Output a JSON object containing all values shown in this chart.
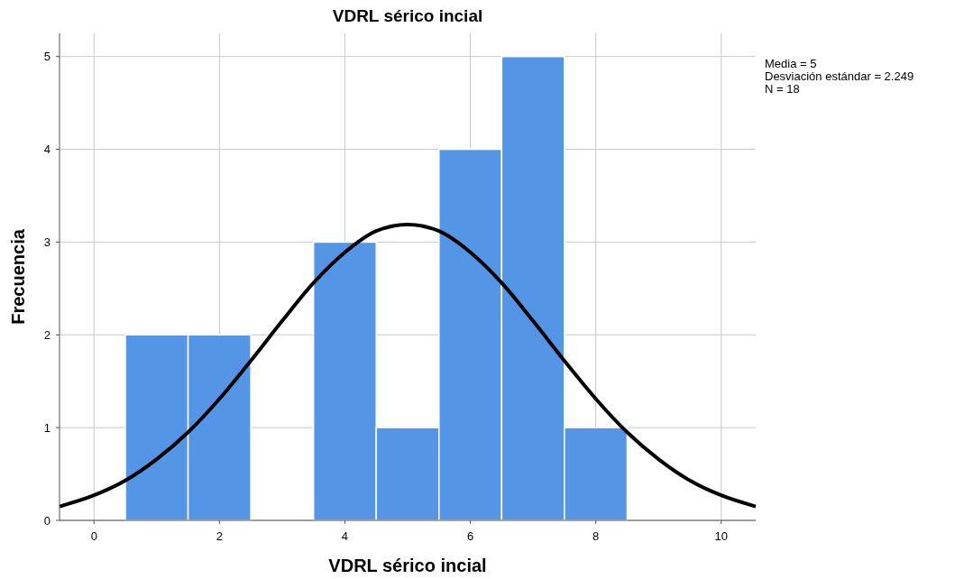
{
  "chart_data": {
    "type": "histogram",
    "title": "VDRL sérico incial",
    "xlabel": "VDRL sérico incial",
    "ylabel": "Frecuencia",
    "bins": [
      0.5,
      1.5,
      2.5,
      3.5,
      4.5,
      5.5,
      6.5,
      7.5,
      8.5
    ],
    "series": [
      {
        "color": "#5595e5",
        "values": [
          2,
          2,
          0,
          3,
          1,
          4,
          5,
          1
        ]
      },
      {
        "type": "line",
        "color": "#000000",
        "x": [
          -0.55,
          0,
          0.5,
          1,
          1.5,
          2,
          2.5,
          3,
          3.5,
          4,
          4.5,
          5,
          5.5,
          6,
          6.5,
          7,
          7.5,
          8,
          8.5,
          9,
          9.5,
          10,
          10.55
        ],
        "values": [
          0.15,
          0.27,
          0.43,
          0.66,
          0.95,
          1.31,
          1.72,
          2.15,
          2.56,
          2.89,
          3.12,
          3.19,
          3.12,
          2.89,
          2.56,
          2.15,
          1.72,
          1.31,
          0.95,
          0.66,
          0.43,
          0.27,
          0.15
        ]
      }
    ],
    "xlim": [
      -0.55,
      10.55
    ],
    "ylim": [
      0,
      5.25
    ],
    "xticks": [
      0,
      2,
      4,
      6,
      8,
      10
    ],
    "yticks": [
      0,
      1,
      2,
      3,
      4,
      5
    ],
    "grid": true,
    "marker": "none",
    "line_style": "solid",
    "annotations": [
      "Media = 5",
      "Desviación estándar = 2.249",
      "N = 18"
    ]
  }
}
